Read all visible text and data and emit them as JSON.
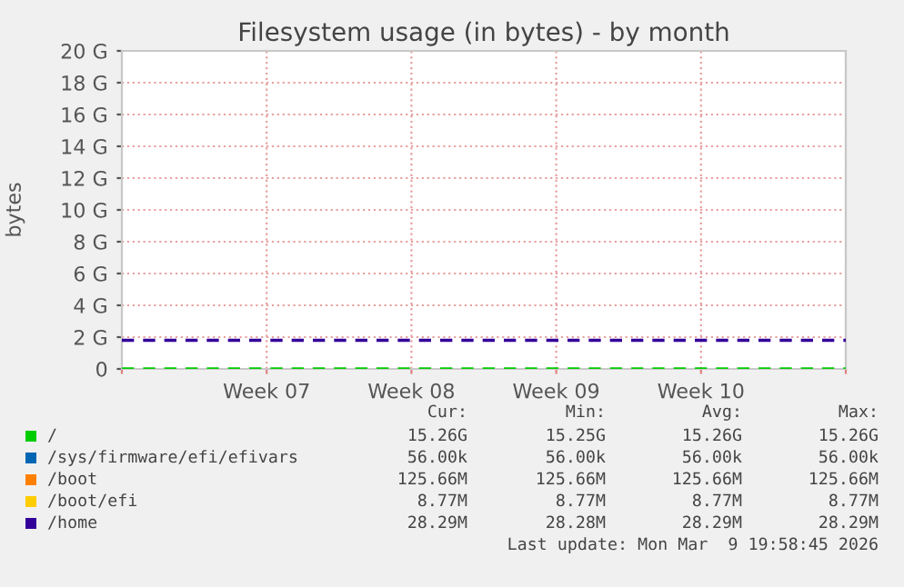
{
  "chart_data": {
    "type": "line",
    "title": "Filesystem usage (in bytes) - by month",
    "ylabel": "bytes",
    "categories": [
      null,
      "Week 07",
      "Week 08",
      "Week 09",
      "Week 10",
      null
    ],
    "series": [
      {
        "name": "/",
        "color": "#00cc00",
        "values": [
          0,
          0,
          0,
          0,
          0,
          0
        ]
      },
      {
        "name": "/sys/firmware/efi/efivars",
        "color": "#0066b3",
        "values": [
          null,
          null,
          null,
          null,
          null,
          null
        ]
      },
      {
        "name": "/boot",
        "color": "#ff8000",
        "values": [
          null,
          null,
          null,
          null,
          null,
          null
        ]
      },
      {
        "name": "/boot/efi",
        "color": "#ffcc00",
        "values": [
          null,
          null,
          null,
          null,
          null,
          null
        ]
      },
      {
        "name": "/home",
        "color": "#330099",
        "values": [
          1.8,
          1.8,
          1.8,
          1.8,
          1.8,
          1.8
        ]
      }
    ],
    "line_style": "dashed",
    "marker": "none",
    "grid": true,
    "legend": "bottom",
    "ylim": [
      0,
      20
    ],
    "yticks": [
      0,
      {
        "value": 2,
        "label": "2 G"
      },
      {
        "value": 4,
        "label": "4 G"
      },
      {
        "value": 6,
        "label": "6 G"
      },
      {
        "value": 8,
        "label": "8 G"
      },
      {
        "value": 10,
        "label": "10 G"
      },
      {
        "value": 12,
        "label": "12 G"
      },
      {
        "value": 14,
        "label": "14 G"
      },
      {
        "value": 16,
        "label": "16 G"
      },
      {
        "value": 18,
        "label": "18 G"
      },
      {
        "value": 20,
        "label": "20 G"
      }
    ],
    "annotations": [
      "Cur:",
      "Min:",
      "Avg:",
      "Max:",
      "15.26G",
      "15.25G",
      "15.26G",
      "15.26G",
      "56.00k",
      "56.00k",
      "56.00k",
      "56.00k",
      "125.66M",
      "125.66M",
      "125.66M",
      "125.66M",
      "8.77M",
      "8.77M",
      "8.77M",
      "8.77M",
      "28.29M",
      "28.28M",
      "28.29M",
      "28.29M",
      "Last update: Mon Mar  9 19:58:45 2026"
    ]
  }
}
